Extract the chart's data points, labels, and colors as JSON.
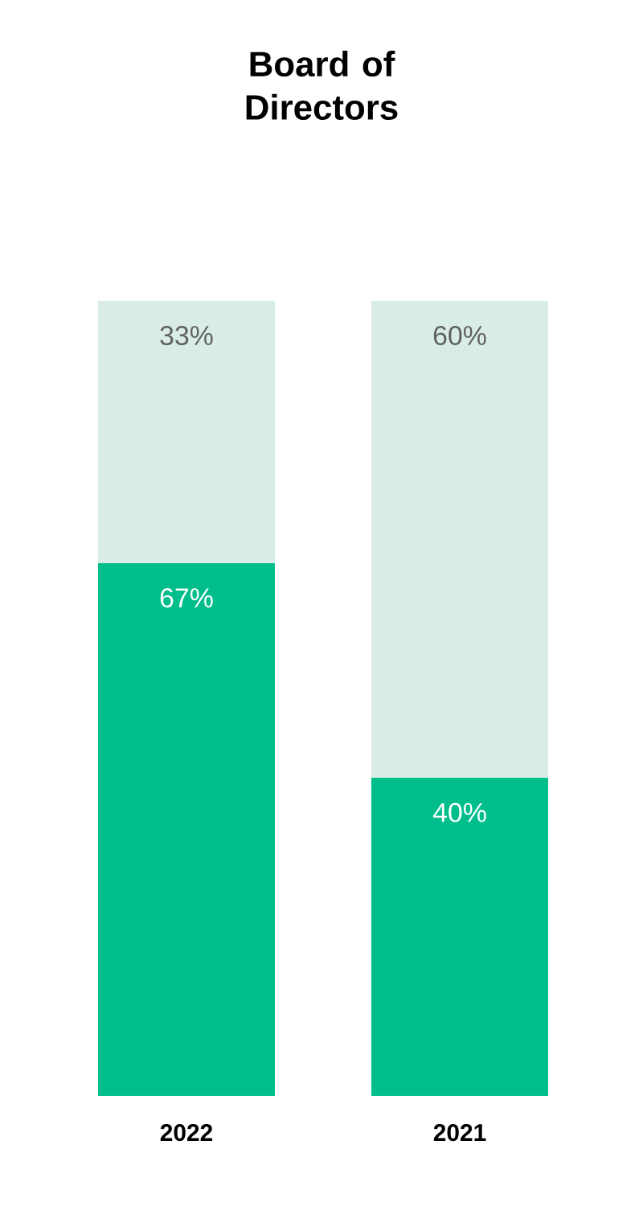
{
  "chart_data": {
    "type": "bar",
    "title": "Board of Directors",
    "categories": [
      "2022",
      "2021"
    ],
    "stacked": true,
    "tick_labels": "x",
    "series": [
      {
        "color": "#00be8c",
        "values": [
          67,
          40
        ],
        "value_labels": [
          "67%",
          "40%"
        ]
      },
      {
        "color": "#d9ede6",
        "values": [
          33,
          60
        ],
        "value_labels": [
          "33%",
          "60%"
        ]
      }
    ]
  }
}
